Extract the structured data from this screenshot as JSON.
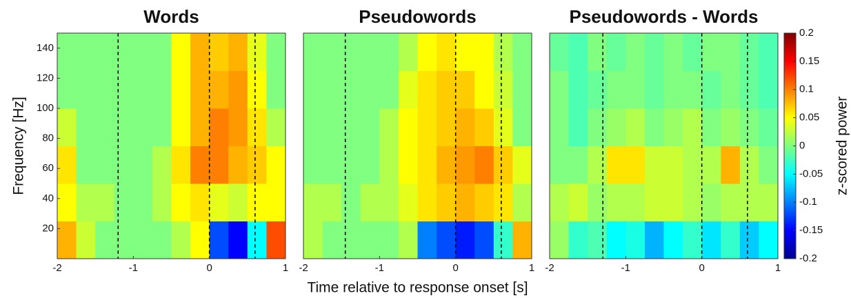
{
  "chart_data": [
    {
      "type": "heatmap",
      "title": "Words",
      "ylabel": "Frequency [Hz]",
      "x": [
        -1.875,
        -1.625,
        -1.375,
        -1.125,
        -0.875,
        -0.625,
        -0.375,
        -0.125,
        0.125,
        0.375,
        0.625,
        0.875
      ],
      "y": [
        12.5,
        37.5,
        62.5,
        87.5,
        112.5,
        137.5
      ],
      "values": [
        [
          0.08,
          0.03,
          0,
          0,
          0,
          0,
          0.02,
          0.05,
          -0.12,
          -0.15,
          -0.05,
          0.12
        ],
        [
          0.05,
          0.02,
          0.02,
          0,
          0,
          0.02,
          0.05,
          0.06,
          0.04,
          0.03,
          0.05,
          0.05
        ],
        [
          0.06,
          0,
          0,
          0,
          0,
          0.02,
          0.06,
          0.1,
          0.1,
          0.08,
          0.07,
          0.05
        ],
        [
          0.03,
          0,
          0,
          0,
          0,
          0,
          0.05,
          0.08,
          0.1,
          0.09,
          0.06,
          0.02
        ],
        [
          0,
          0,
          0,
          0,
          0,
          0,
          0.05,
          0.08,
          0.08,
          0.09,
          0.05,
          0
        ],
        [
          0,
          0,
          0,
          0,
          0,
          0,
          0.05,
          0.08,
          0.07,
          0.08,
          0.04,
          0
        ]
      ],
      "xlim": [
        -2,
        1
      ],
      "ylim": [
        0,
        150
      ],
      "xticks": [
        -2,
        -1,
        0,
        1
      ],
      "yticks": [
        20,
        40,
        60,
        80,
        100,
        120,
        140
      ],
      "vlines": [
        -1.2,
        0,
        0.6
      ]
    },
    {
      "type": "heatmap",
      "title": "Pseudowords",
      "xlabel": "Time relative to response onset [s]",
      "x": [
        -1.875,
        -1.625,
        -1.375,
        -1.125,
        -0.875,
        -0.625,
        -0.375,
        -0.125,
        0.125,
        0.375,
        0.625,
        0.875
      ],
      "y": [
        12.5,
        37.5,
        62.5,
        87.5,
        112.5,
        137.5
      ],
      "values": [
        [
          0.02,
          0,
          0,
          0,
          0,
          0.02,
          -0.1,
          -0.12,
          -0.14,
          -0.12,
          -0.03,
          0.08
        ],
        [
          0.02,
          0.02,
          0,
          0.02,
          0.02,
          0.04,
          0.06,
          0.07,
          0.08,
          0.07,
          0.06,
          0.02
        ],
        [
          0,
          0,
          0,
          0,
          0.02,
          0.05,
          0.06,
          0.08,
          0.09,
          0.1,
          0.07,
          0.04
        ],
        [
          0,
          0,
          0,
          0,
          0.02,
          0.05,
          0.06,
          0.07,
          0.08,
          0.07,
          0.04,
          0
        ],
        [
          0,
          0,
          0,
          0,
          0,
          0.04,
          0.06,
          0.07,
          0.07,
          0.05,
          0.03,
          0
        ],
        [
          0,
          0,
          0,
          0,
          0,
          0.02,
          0.05,
          0.06,
          0.05,
          0.05,
          0.02,
          0
        ]
      ],
      "xlim": [
        -2,
        1
      ],
      "ylim": [
        0,
        150
      ],
      "xticks": [
        -2,
        -1,
        0,
        1
      ],
      "vlines": [
        -1.45,
        0,
        0.6
      ]
    },
    {
      "type": "heatmap",
      "title": "Pseudowords - Words",
      "x": [
        -1.875,
        -1.625,
        -1.375,
        -1.125,
        -0.875,
        -0.625,
        -0.375,
        -0.125,
        0.125,
        0.375,
        0.625,
        0.875
      ],
      "y": [
        12.5,
        37.5,
        62.5,
        87.5,
        112.5,
        137.5
      ],
      "values": [
        [
          0.01,
          -0.03,
          -0.02,
          -0.05,
          -0.04,
          -0.08,
          -0.05,
          -0.03,
          -0.06,
          -0.03,
          -0.07,
          -0.05
        ],
        [
          0.02,
          0.03,
          0.01,
          0.02,
          0.02,
          0.03,
          0.03,
          0.02,
          0.01,
          0.02,
          0.02,
          0.02
        ],
        [
          0,
          0,
          0.02,
          0.06,
          0.06,
          0.03,
          0.03,
          0.02,
          0.02,
          0.08,
          0.02,
          0
        ],
        [
          0,
          -0.02,
          0,
          0.01,
          0.02,
          0,
          0.01,
          0.02,
          0,
          0.01,
          0,
          -0.01
        ],
        [
          0,
          -0.02,
          -0.01,
          0,
          0,
          -0.01,
          0,
          0,
          -0.01,
          0,
          -0.01,
          -0.02
        ],
        [
          -0.01,
          -0.02,
          0,
          -0.01,
          0,
          -0.01,
          0,
          -0.01,
          0,
          0,
          -0.01,
          -0.02
        ]
      ],
      "xlim": [
        -2,
        1
      ],
      "ylim": [
        0,
        150
      ],
      "xticks": [
        -2,
        -1,
        0,
        1
      ],
      "vlines": [
        -1.3,
        0,
        0.6
      ],
      "clim": [
        -0.2,
        0.2
      ],
      "cticks": [
        -0.2,
        -0.15,
        -0.1,
        -0.05,
        0,
        0.05,
        0.1,
        0.15,
        0.2
      ],
      "colorbar_label": "z-scored power"
    }
  ]
}
